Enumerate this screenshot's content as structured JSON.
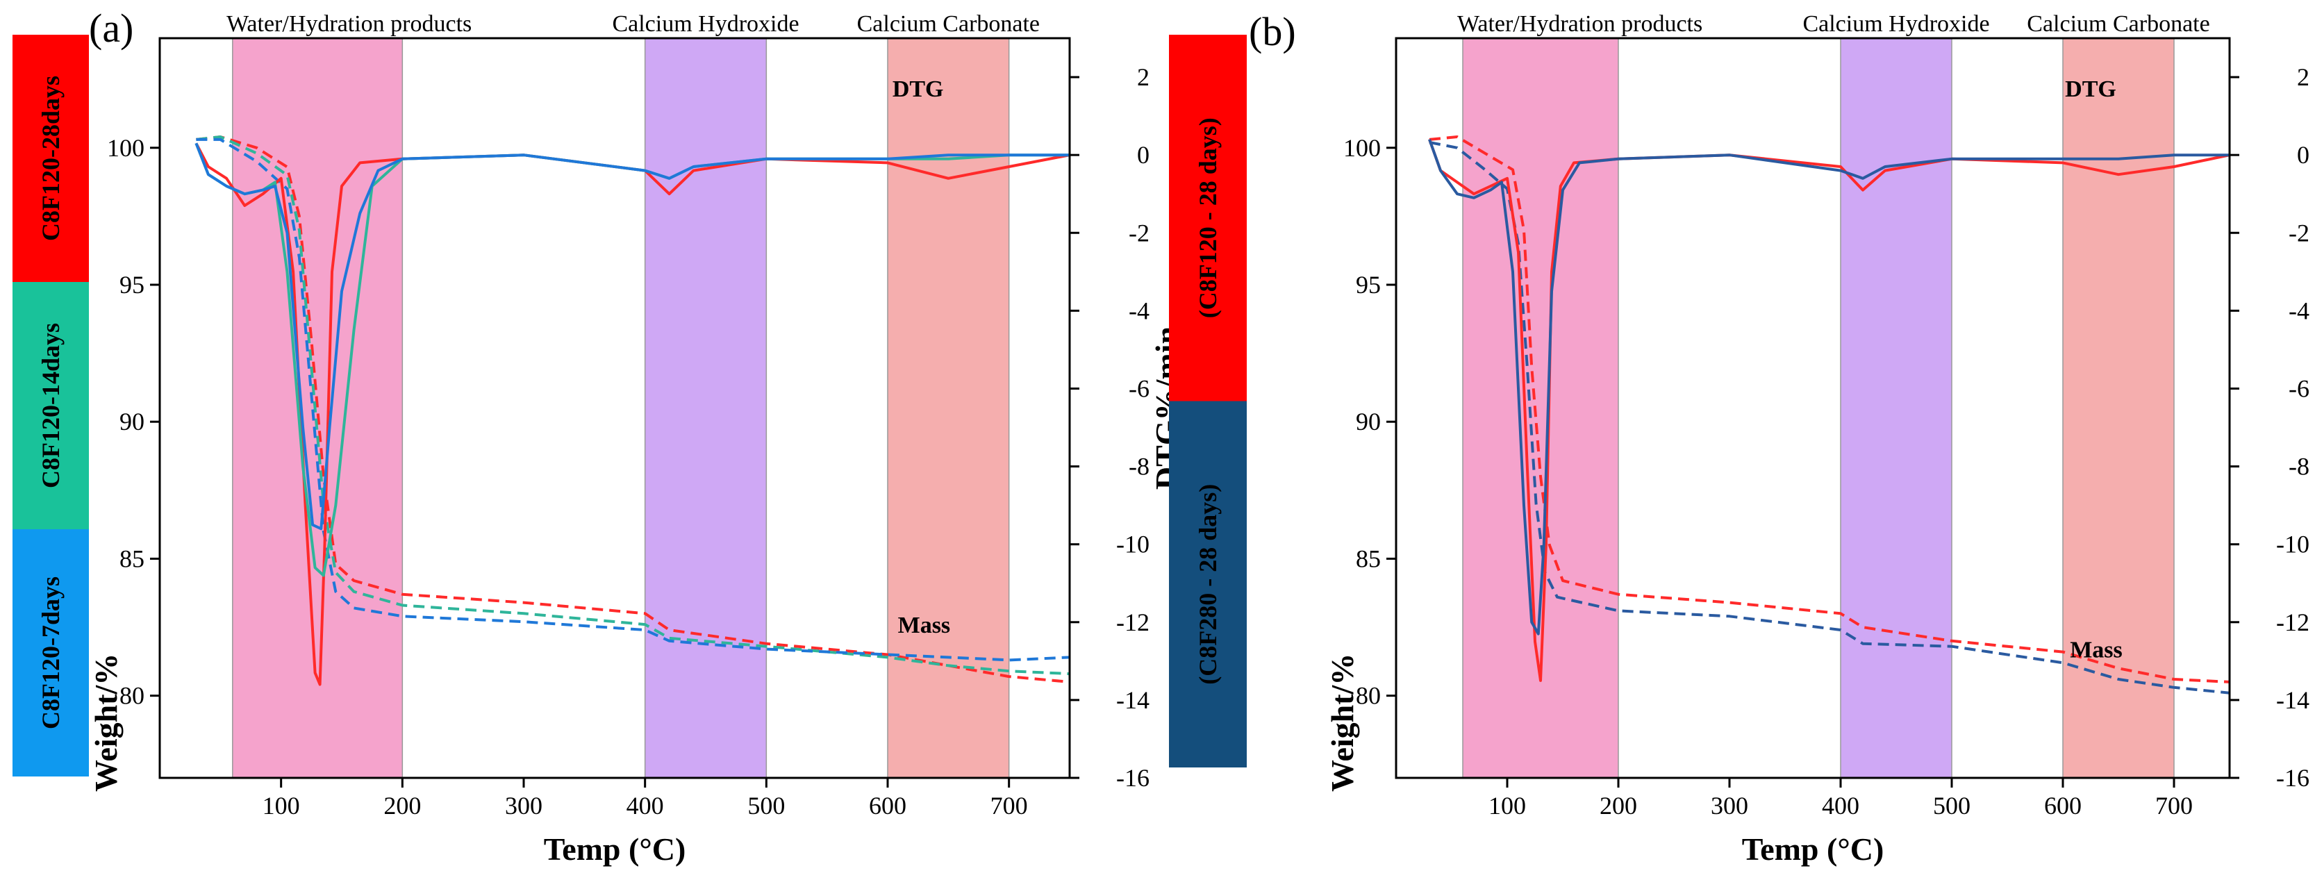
{
  "chart_data": [
    {
      "panel_label": "(a)",
      "type": "line",
      "xlabel": "Temp (°C)",
      "ylabel_left": "Weight/%",
      "ylabel_right": "DTG%/min",
      "xlim": [
        0,
        750
      ],
      "ylim_left": [
        77,
        104
      ],
      "ylim_right": [
        -16,
        3
      ],
      "x_ticks": [
        100,
        200,
        300,
        400,
        500,
        600,
        700
      ],
      "y_left_ticks": [
        80,
        85,
        90,
        95,
        100
      ],
      "y_right_ticks": [
        2,
        0,
        -2,
        -4,
        -6,
        -8,
        -10,
        -12,
        -14,
        -16
      ],
      "regions": [
        {
          "label": "Water/Hydration products",
          "x": [
            60,
            200
          ],
          "color": "#f5a3cc"
        },
        {
          "label": "Calcium Hydroxide",
          "x": [
            400,
            500
          ],
          "color": "#cfa8f5"
        },
        {
          "label": "Calcium Carbonate",
          "x": [
            600,
            700
          ],
          "color": "#f5aeae"
        }
      ],
      "annotations": [
        {
          "text": "DTG",
          "x": 625,
          "y_right": 1.5
        },
        {
          "text": "Mass",
          "x": 630,
          "y_left": 82.3
        }
      ],
      "legend_bands": [
        {
          "label": "C8F120-28days",
          "color": "#ff0000"
        },
        {
          "label": "C8F120-14days",
          "color": "#19c29a"
        },
        {
          "label": "C8F120-7days",
          "color": "#0f99ef"
        }
      ],
      "series": [
        {
          "name": "C8F120-28days",
          "kind": "Mass",
          "color": "#ff2a2a",
          "x": [
            30,
            50,
            80,
            105,
            115,
            125,
            135,
            145,
            160,
            200,
            300,
            400,
            420,
            500,
            600,
            650,
            700,
            750
          ],
          "y": [
            100.3,
            100.4,
            100.0,
            99.3,
            97.5,
            93.0,
            88.0,
            84.8,
            84.2,
            83.7,
            83.4,
            83.0,
            82.4,
            81.9,
            81.5,
            81.1,
            80.7,
            80.5
          ]
        },
        {
          "name": "C8F120-14days",
          "kind": "Mass",
          "color": "#2fb59a",
          "x": [
            30,
            50,
            80,
            105,
            115,
            125,
            135,
            145,
            160,
            200,
            300,
            400,
            420,
            500,
            600,
            650,
            700,
            750
          ],
          "y": [
            100.3,
            100.4,
            99.8,
            99.0,
            97.0,
            92.0,
            87.0,
            84.5,
            83.8,
            83.3,
            83.0,
            82.6,
            82.1,
            81.8,
            81.4,
            81.1,
            80.9,
            80.8
          ]
        },
        {
          "name": "C8F120-7days",
          "kind": "Mass",
          "color": "#1f78d8",
          "x": [
            30,
            50,
            80,
            105,
            115,
            125,
            135,
            145,
            160,
            200,
            300,
            400,
            420,
            500,
            600,
            650,
            700,
            750
          ],
          "y": [
            100.3,
            100.3,
            99.5,
            98.5,
            96.0,
            91.0,
            86.0,
            83.8,
            83.2,
            82.9,
            82.7,
            82.4,
            82.0,
            81.7,
            81.5,
            81.4,
            81.3,
            81.4
          ]
        },
        {
          "name": "C8F120-28days",
          "kind": "DTG",
          "color": "#ff2a2a",
          "x": [
            30,
            40,
            55,
            70,
            85,
            100,
            110,
            120,
            128,
            132,
            136,
            142,
            150,
            165,
            200,
            300,
            400,
            420,
            440,
            500,
            600,
            650,
            700,
            750
          ],
          "y": [
            0.3,
            -0.3,
            -0.6,
            -1.3,
            -1.0,
            -0.6,
            -3.0,
            -9.0,
            -13.3,
            -13.6,
            -10.0,
            -3.0,
            -0.8,
            -0.2,
            -0.1,
            0.0,
            -0.4,
            -1.0,
            -0.4,
            -0.1,
            -0.2,
            -0.6,
            -0.3,
            0.0
          ]
        },
        {
          "name": "C8F120-14days",
          "kind": "DTG",
          "color": "#2fb59a",
          "x": [
            30,
            40,
            55,
            70,
            85,
            95,
            105,
            118,
            128,
            135,
            145,
            160,
            175,
            200,
            300,
            400,
            420,
            440,
            500,
            600,
            650,
            700,
            750
          ],
          "y": [
            0.3,
            -0.5,
            -0.8,
            -1.0,
            -0.9,
            -0.7,
            -3.0,
            -8.0,
            -10.6,
            -10.8,
            -9.0,
            -4.5,
            -0.8,
            -0.1,
            0.0,
            -0.4,
            -0.6,
            -0.3,
            -0.1,
            -0.1,
            -0.1,
            0.0,
            0.0
          ]
        },
        {
          "name": "C8F120-7days",
          "kind": "DTG",
          "color": "#1f78d8",
          "x": [
            30,
            40,
            55,
            70,
            85,
            95,
            105,
            118,
            126,
            133,
            140,
            150,
            165,
            180,
            200,
            300,
            400,
            420,
            440,
            500,
            600,
            650,
            700,
            750
          ],
          "y": [
            0.3,
            -0.5,
            -0.8,
            -1.0,
            -0.9,
            -0.8,
            -2.0,
            -7.0,
            -9.5,
            -9.6,
            -7.0,
            -3.5,
            -1.5,
            -0.4,
            -0.1,
            0.0,
            -0.4,
            -0.6,
            -0.3,
            -0.1,
            -0.1,
            0.0,
            0.0,
            0.0
          ]
        }
      ]
    },
    {
      "panel_label": "(b)",
      "type": "line",
      "xlabel": "Temp (°C)",
      "ylabel_left": "Weight/%",
      "ylabel_right": "DTG%/min",
      "xlim": [
        0,
        750
      ],
      "ylim_left": [
        77,
        104
      ],
      "ylim_right": [
        -16,
        3
      ],
      "x_ticks": [
        100,
        200,
        300,
        400,
        500,
        600,
        700
      ],
      "y_left_ticks": [
        80,
        85,
        90,
        95,
        100
      ],
      "y_right_ticks": [
        2,
        0,
        -2,
        -4,
        -6,
        -8,
        -10,
        -12,
        -14,
        -16
      ],
      "regions": [
        {
          "label": "Water/Hydration products",
          "x": [
            60,
            200
          ],
          "color": "#f5a3cc"
        },
        {
          "label": "Calcium Hydroxide",
          "x": [
            400,
            500
          ],
          "color": "#cfa8f5"
        },
        {
          "label": "Calcium Carbonate",
          "x": [
            600,
            700
          ],
          "color": "#f5aeae"
        }
      ],
      "annotations": [
        {
          "text": "DTG",
          "x": 625,
          "y_right": 1.5
        },
        {
          "text": "Mass",
          "x": 630,
          "y_left": 81.4
        }
      ],
      "legend_bands": [
        {
          "label": "(C8F120 - 28 days)",
          "color": "#ff0000"
        },
        {
          "label": "(C8F280 - 28 days)",
          "color": "#144e7c"
        }
      ],
      "series": [
        {
          "name": "(C8F120 - 28 days)",
          "kind": "Mass",
          "color": "#ff2a2a",
          "x": [
            30,
            55,
            80,
            105,
            115,
            122,
            130,
            138,
            150,
            200,
            300,
            400,
            420,
            500,
            600,
            650,
            700,
            750
          ],
          "y": [
            100.3,
            100.4,
            99.8,
            99.2,
            97.0,
            92.0,
            88.0,
            85.5,
            84.2,
            83.7,
            83.4,
            83.0,
            82.5,
            82.0,
            81.6,
            81.0,
            80.6,
            80.5
          ]
        },
        {
          "name": "(C8F280 - 28 days)",
          "kind": "Mass",
          "color": "#2a5aa0",
          "x": [
            30,
            55,
            80,
            100,
            110,
            118,
            126,
            134,
            145,
            200,
            300,
            400,
            420,
            500,
            600,
            650,
            700,
            750
          ],
          "y": [
            100.2,
            100.0,
            99.2,
            98.5,
            96.5,
            92.0,
            87.0,
            84.5,
            83.6,
            83.1,
            82.9,
            82.4,
            81.9,
            81.8,
            81.2,
            80.6,
            80.3,
            80.1
          ]
        },
        {
          "name": "(C8F120 - 28 days)",
          "kind": "DTG",
          "color": "#ff2a2a",
          "x": [
            30,
            40,
            55,
            70,
            85,
            100,
            110,
            118,
            125,
            130,
            135,
            140,
            148,
            160,
            200,
            300,
            400,
            420,
            440,
            500,
            600,
            650,
            700,
            750
          ],
          "y": [
            0.4,
            -0.4,
            -0.7,
            -1.0,
            -0.8,
            -0.6,
            -2.5,
            -8.0,
            -12.5,
            -13.5,
            -10.0,
            -3.0,
            -0.8,
            -0.2,
            -0.1,
            0.0,
            -0.3,
            -0.9,
            -0.4,
            -0.1,
            -0.2,
            -0.5,
            -0.3,
            0.0
          ]
        },
        {
          "name": "(C8F280 - 28 days)",
          "kind": "DTG",
          "color": "#2a5aa0",
          "x": [
            30,
            40,
            55,
            70,
            85,
            95,
            105,
            115,
            122,
            128,
            133,
            140,
            150,
            165,
            200,
            300,
            400,
            420,
            440,
            500,
            600,
            650,
            700,
            750
          ],
          "y": [
            0.4,
            -0.4,
            -1.0,
            -1.1,
            -0.9,
            -0.7,
            -3.0,
            -9.0,
            -12.0,
            -12.3,
            -10.0,
            -3.5,
            -0.9,
            -0.2,
            -0.1,
            0.0,
            -0.4,
            -0.6,
            -0.3,
            -0.1,
            -0.1,
            -0.1,
            0.0,
            0.0
          ]
        }
      ]
    }
  ]
}
